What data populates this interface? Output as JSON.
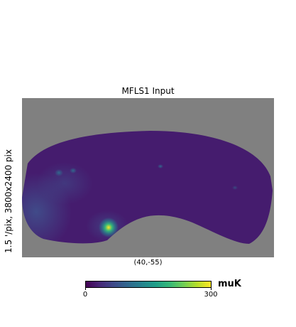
{
  "plot": {
    "title": "MFLS1 Input",
    "ylabel": "1.5 '/pix,   3800x2400 pix",
    "center_label": "(40,-55)"
  },
  "colorbar": {
    "min_label": "0",
    "max_label": "300",
    "unit": "muK",
    "colormap": "viridis",
    "range": [
      0,
      300
    ]
  },
  "colors": {
    "background_mask": "#808080",
    "map_base": "#451c6e"
  }
}
